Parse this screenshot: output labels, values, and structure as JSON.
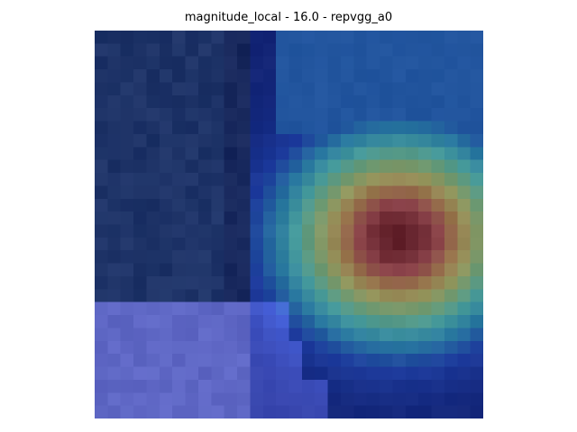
{
  "figure": {
    "title": "magnitude_local - 16.0 - repvgg_a0"
  },
  "overlay": {
    "grid_rows": 30,
    "grid_cols": 30,
    "hotspot_center": {
      "row": 15.5,
      "col": 23.0
    },
    "colormap_stops": [
      "#0b1e8f",
      "#1f46d4",
      "#2fa8d8",
      "#5fe3d2",
      "#9be38f",
      "#e6e06a",
      "#e8a24a",
      "#d6534a",
      "#8a1410"
    ],
    "base_image_palette": {
      "dark_background": "#1b2a4a",
      "shadow": "#243a5a",
      "sleeve": "#7a7fd6"
    }
  }
}
